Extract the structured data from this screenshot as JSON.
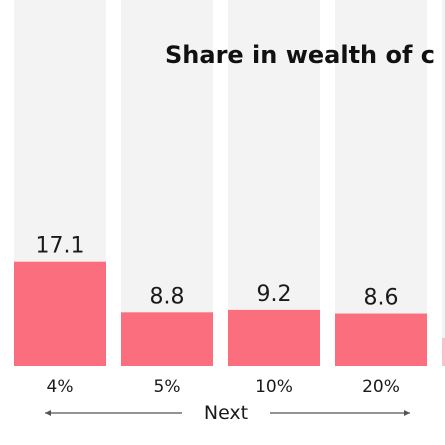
{
  "chart_data": {
    "type": "bar",
    "title": "Share in wealth of c",
    "categories": [
      "4%",
      "5%",
      "10%",
      "20%",
      ""
    ],
    "values": [
      17.1,
      8.8,
      9.2,
      8.6,
      null
    ],
    "value_labels": [
      "17.1",
      "8.8",
      "9.2",
      "8.6",
      ""
    ],
    "group_label": "Next",
    "xlabel": "",
    "ylabel": "",
    "ylim": [
      0,
      20
    ],
    "grid": false,
    "legend": "none",
    "colors": {
      "bar": "#fa6e7e",
      "column_background": "#f3f3f3",
      "text": "#1a1a1a"
    }
  }
}
